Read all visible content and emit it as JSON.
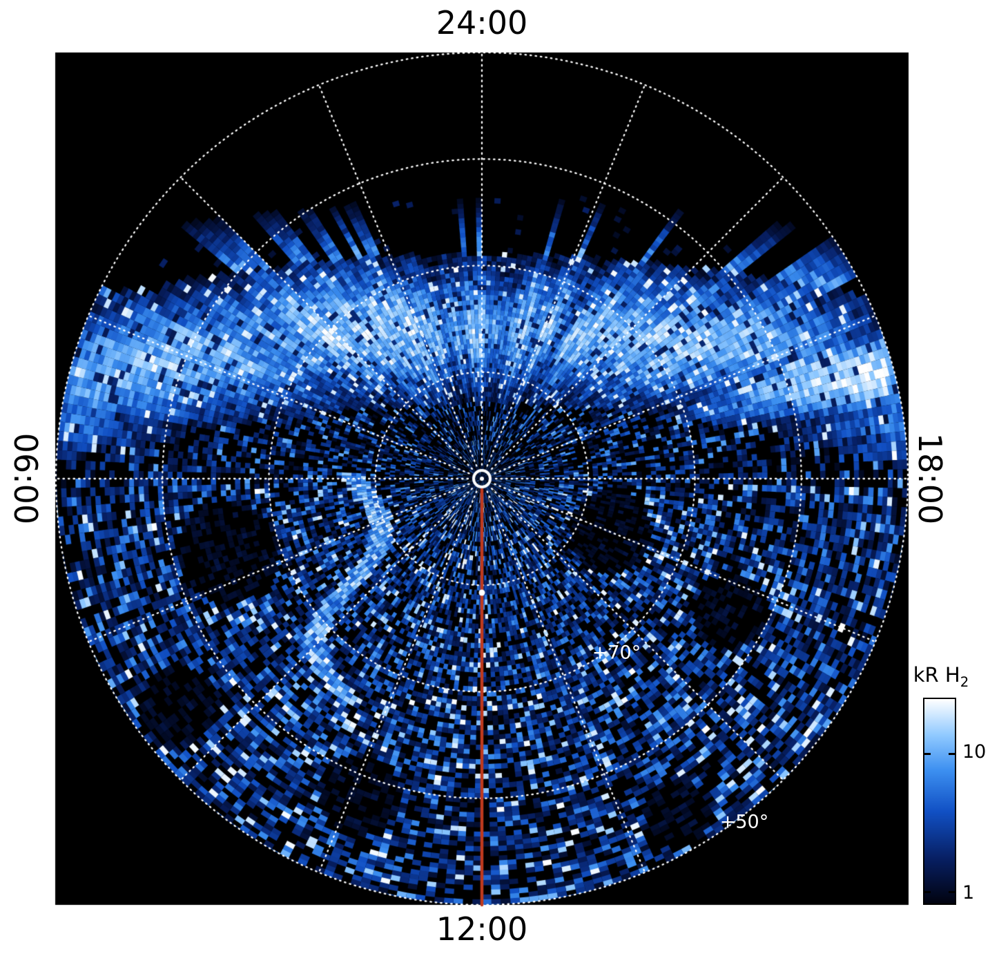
{
  "figure": {
    "background": "#ffffff",
    "plot_background": "#000000",
    "grid_color": "#ffffff"
  },
  "chart_data": {
    "type": "heatmap",
    "projection": "polar",
    "description": "Polar projection of H2 auroral emission brightness versus latitude and local time. A bright patchy auroral arc with radial streaks spans the dawn-midnight-dusk (06:00-24:00-18:00) sectors between about +55 and +75 degrees latitude; faint blue speckled emission covers the rest of the disk; black indicates no or low signal. White dotted grid of latitude circles and local-time meridians; a solid red line marks the 12:00 meridian from the pole to the projection edge.",
    "angular_axis": {
      "type": "local-time",
      "labels": {
        "top": "24:00",
        "right": "18:00",
        "bottom": "12:00",
        "left": "06:00"
      },
      "spoke_spacing_deg": 22.5
    },
    "radial_axis": {
      "type": "latitude",
      "center_latitude_deg": 90,
      "outer_latitude_deg": 50,
      "gridline_latitudes_deg": [
        80,
        70,
        60,
        50
      ],
      "annotations": [
        {
          "text": "+70°",
          "latitude_deg": 70
        },
        {
          "text": "+50°",
          "latitude_deg": 50
        }
      ]
    },
    "colorbar": {
      "title_main": "kR H",
      "title_sub": "2",
      "unit": "kR",
      "species": "H2",
      "scale": "log",
      "tick_labels": [
        "10",
        "1"
      ],
      "tick_values": [
        10,
        1
      ],
      "range_estimate": [
        1,
        25
      ],
      "colormap": [
        {
          "v": 0,
          "c": "#01030f"
        },
        {
          "v": 0.22,
          "c": "#071f63"
        },
        {
          "v": 0.45,
          "c": "#1150c4"
        },
        {
          "v": 0.65,
          "c": "#3c8ff0"
        },
        {
          "v": 0.82,
          "c": "#8ec8ff"
        },
        {
          "v": 1,
          "c": "#ffffff"
        }
      ]
    },
    "features": [
      {
        "name": "auroral-arc",
        "description": "Bright streaky H2 emission band across the dawn-midnight-dusk sectors near +55 to +75 latitude"
      },
      {
        "name": "noon-meridian-line",
        "description": "Solid red line along the 12:00 meridian from the pole to the projection edge",
        "color": "#c03a1e"
      },
      {
        "name": "pole-marker",
        "description": "Small white circle marking the pole at the projection center"
      },
      {
        "name": "background-speckle",
        "description": "Faint blue speckled signal over the dayside hemisphere"
      }
    ]
  }
}
